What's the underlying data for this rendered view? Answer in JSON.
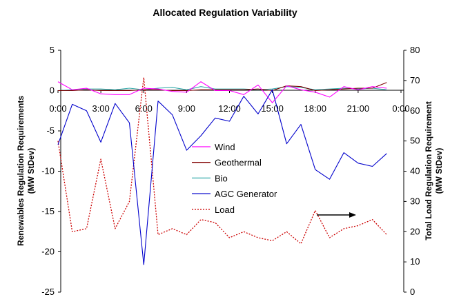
{
  "chart_data": {
    "type": "line",
    "title": "Allocated Regulation Variability",
    "ylabel_left": [
      "Renewables Regulation Requirements",
      "(MW StDev)"
    ],
    "ylabel_right": [
      "Total Load Regulation Requirement",
      "(MW StDev)"
    ],
    "x_ticks": [
      "0:00",
      "3:00",
      "6:00",
      "9:00",
      "12:00",
      "15:00",
      "18:00",
      "21:00",
      "0:00"
    ],
    "x_hours": [
      0,
      1,
      2,
      3,
      4,
      5,
      6,
      7,
      8,
      9,
      10,
      11,
      12,
      13,
      14,
      15,
      16,
      17,
      18,
      19,
      20,
      21,
      22,
      23
    ],
    "y_left_ticks": [
      "5",
      "0",
      "-5",
      "-10",
      "-15",
      "-20",
      "-25"
    ],
    "y_left_range": [
      -25,
      5
    ],
    "y_right_ticks": [
      "80",
      "70",
      "60",
      "50",
      "40",
      "30",
      "20",
      "10",
      "0"
    ],
    "y_right_range": [
      0,
      80
    ],
    "series": [
      {
        "name": "Wind",
        "axis": "left",
        "color": "#ff00ff",
        "dash": "solid",
        "values": [
          1.1,
          0.1,
          0.3,
          -0.4,
          -0.5,
          -0.5,
          0.3,
          0.2,
          -0.1,
          -0.2,
          1.1,
          0.0,
          0.0,
          -0.5,
          0.7,
          -1.5,
          0.6,
          0.1,
          -0.2,
          -0.8,
          0.5,
          0.1,
          0.5,
          0.3
        ]
      },
      {
        "name": "Geothermal",
        "axis": "left",
        "color": "#800000",
        "dash": "solid",
        "values": [
          0.0,
          0.0,
          0.1,
          0.0,
          0.0,
          0.0,
          0.1,
          0.1,
          0.0,
          0.0,
          0.1,
          0.1,
          0.1,
          0.1,
          0.2,
          0.0,
          0.6,
          0.5,
          0.0,
          0.1,
          0.2,
          0.3,
          0.3,
          1.0
        ]
      },
      {
        "name": "Bio",
        "axis": "left",
        "color": "#33aaaa",
        "dash": "solid",
        "values": [
          0.0,
          0.1,
          0.2,
          0.2,
          0.1,
          0.3,
          0.1,
          0.3,
          0.4,
          0.1,
          0.5,
          0.2,
          0.2,
          0.2,
          0.1,
          0.2,
          0.5,
          0.4,
          0.1,
          0.2,
          0.3,
          0.2,
          0.3,
          0.1
        ]
      },
      {
        "name": "AGC Generator",
        "axis": "left",
        "color": "#0000cc",
        "dash": "solid",
        "values": [
          -6.7,
          -1.7,
          -2.5,
          -6.4,
          -1.6,
          -4.0,
          -21.6,
          -1.3,
          -3.0,
          -7.4,
          -5.6,
          -3.4,
          -3.8,
          -0.7,
          -2.9,
          0.1,
          -6.6,
          -4.2,
          -9.8,
          -11.0,
          -7.7,
          -9.0,
          -9.4,
          -7.8
        ]
      },
      {
        "name": "Load",
        "axis": "right",
        "color": "#cc0000",
        "dash": "dotted",
        "values": [
          50,
          20,
          21,
          44,
          21,
          30,
          71,
          19,
          21,
          19,
          24,
          23,
          18,
          20,
          18,
          17,
          20,
          16,
          27,
          18,
          21,
          22,
          24,
          19
        ]
      }
    ],
    "legend_position": "center",
    "annotations": [
      {
        "type": "arrow",
        "direction": "right"
      }
    ],
    "grid": false
  }
}
